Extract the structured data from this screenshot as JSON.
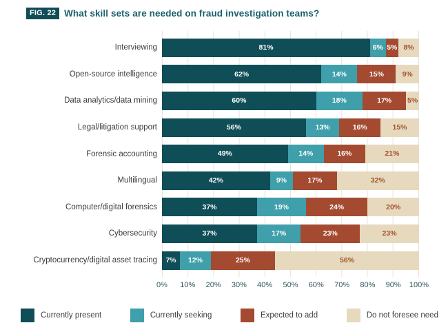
{
  "figure": {
    "badge": "FIG. 22",
    "title": "What skill sets are needed on fraud investigation teams?"
  },
  "chart_data": {
    "type": "bar",
    "stacked": true,
    "orientation": "horizontal",
    "title": "What skill sets are needed on fraud investigation teams?",
    "categories": [
      "Interviewing",
      "Open-source intelligence",
      "Data analytics/data mining",
      "Legal/litigation support",
      "Forensic accounting",
      "Multilingual",
      "Computer/digital forensics",
      "Cybersecurity",
      "Cryptocurrency/digital asset tracing"
    ],
    "series": [
      {
        "name": "Currently present",
        "color": "#0f4d57",
        "values": [
          81,
          62,
          60,
          56,
          49,
          42,
          37,
          37,
          7
        ]
      },
      {
        "name": "Currently seeking",
        "color": "#3f9faa",
        "values": [
          6,
          14,
          18,
          13,
          14,
          9,
          19,
          17,
          12
        ]
      },
      {
        "name": "Expected to add",
        "color": "#a34a31",
        "values": [
          5,
          15,
          17,
          16,
          16,
          17,
          24,
          23,
          25
        ]
      },
      {
        "name": "Do not foresee need",
        "color": "#e6d9bd",
        "values": [
          8,
          9,
          5,
          15,
          21,
          32,
          20,
          23,
          56
        ]
      }
    ],
    "xlim": [
      0,
      100
    ],
    "x_tick_labels": [
      "0%",
      "10%",
      "20%",
      "30%",
      "40%",
      "50%",
      "60%",
      "70%",
      "80%",
      "90%",
      "100%"
    ],
    "value_label_format": "{value}%",
    "grid": true,
    "legend_position": "bottom"
  },
  "colors": {
    "badge_bg": "#0f4d57",
    "title_text": "#1a5f6b",
    "value_label_on_dark": "#ffffff",
    "value_label_on_light": "#a3512f",
    "gridline": "#e7e3d9",
    "axis_text": "#31545c",
    "category_text": "#3a3a3a"
  }
}
